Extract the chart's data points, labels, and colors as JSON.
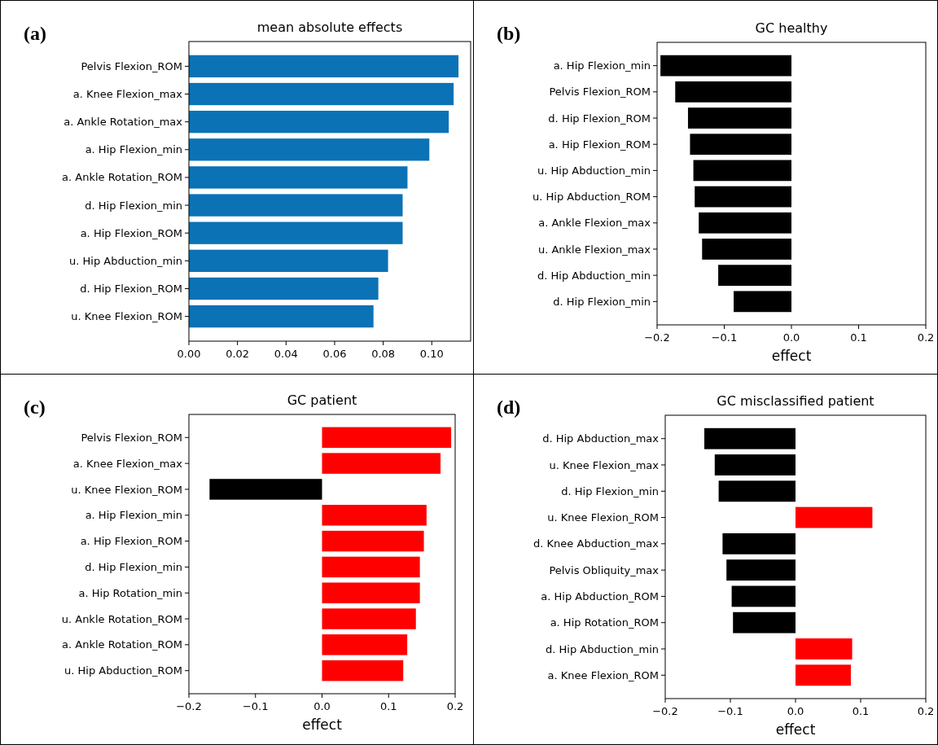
{
  "chart_data": [
    {
      "type": "bar",
      "orientation": "horizontal",
      "title": "mean absolute effects",
      "annotations": [
        "(a)"
      ],
      "categories": [
        "Pelvis Flexion_ROM",
        "a. Knee Flexion_max",
        "a. Ankle Rotation_max",
        "a. Hip Flexion_min",
        "a. Ankle Rotation_ROM",
        "d. Hip Flexion_min",
        "a. Hip Flexion_ROM",
        "u. Hip Abduction_min",
        "d. Hip Flexion_ROM",
        "u. Knee Flexion_ROM"
      ],
      "values": [
        0.111,
        0.109,
        0.107,
        0.099,
        0.09,
        0.088,
        0.088,
        0.082,
        0.078,
        0.076
      ],
      "color": "#0b72b5",
      "xlim": [
        0,
        0.116
      ],
      "xticks": [
        {
          "value": 0,
          "label": "0.00"
        },
        {
          "value": 0.02,
          "label": "0.02"
        },
        {
          "value": 0.04,
          "label": "0.04"
        },
        {
          "value": 0.06,
          "label": "0.06"
        },
        {
          "value": 0.08,
          "label": "0.08"
        },
        {
          "value": 0.1,
          "label": "0.10"
        }
      ]
    },
    {
      "type": "bar",
      "orientation": "horizontal",
      "title": "GC healthy",
      "xlabel": "effect",
      "annotations": [
        "(b)"
      ],
      "categories": [
        "a. Hip Flexion_min",
        "Pelvis Flexion_ROM",
        "d. Hip Flexion_ROM",
        "a. Hip Flexion_ROM",
        "u. Hip Abduction_min",
        "u. Hip Abduction_ROM",
        "a. Ankle Flexion_max",
        "u. Ankle Flexion_max",
        "d. Hip Abduction_min",
        "d. Hip Flexion_min"
      ],
      "values": [
        -0.195,
        -0.173,
        -0.154,
        -0.151,
        -0.146,
        -0.144,
        -0.138,
        -0.133,
        -0.109,
        -0.086
      ],
      "color": "#000000",
      "xlim": [
        -0.2,
        0.2
      ],
      "xticks": [
        {
          "value": -0.2,
          "label": "−0.2"
        },
        {
          "value": -0.1,
          "label": "−0.1"
        },
        {
          "value": 0,
          "label": "0.0"
        },
        {
          "value": 0.1,
          "label": "0.1"
        },
        {
          "value": 0.2,
          "label": "0.2"
        }
      ]
    },
    {
      "type": "bar",
      "orientation": "horizontal",
      "title": "GC patient",
      "xlabel": "effect",
      "annotations": [
        "(c)"
      ],
      "categories": [
        "Pelvis Flexion_ROM",
        "a. Knee Flexion_max",
        "u. Knee Flexion_ROM",
        "a. Hip Flexion_min",
        "a. Hip Flexion_ROM",
        "d. Hip Flexion_min",
        "a. Hip Rotation_min",
        "u. Ankle Rotation_ROM",
        "a. Ankle Rotation_ROM",
        "u. Hip Abduction_ROM"
      ],
      "values": [
        0.194,
        0.178,
        -0.169,
        0.157,
        0.153,
        0.147,
        0.147,
        0.141,
        0.128,
        0.122
      ],
      "colors": [
        "#ff0000",
        "#ff0000",
        "#000000",
        "#ff0000",
        "#ff0000",
        "#ff0000",
        "#ff0000",
        "#ff0000",
        "#ff0000",
        "#ff0000"
      ],
      "xlim": [
        -0.2,
        0.2
      ],
      "xticks": [
        {
          "value": -0.2,
          "label": "−0.2"
        },
        {
          "value": -0.1,
          "label": "−0.1"
        },
        {
          "value": 0,
          "label": "0.0"
        },
        {
          "value": 0.1,
          "label": "0.1"
        },
        {
          "value": 0.2,
          "label": "0.2"
        }
      ]
    },
    {
      "type": "bar",
      "orientation": "horizontal",
      "title": "GC misclassified patient",
      "xlabel": "effect",
      "annotations": [
        "(d)"
      ],
      "categories": [
        "d. Hip Abduction_max",
        "u. Knee Flexion_max",
        "d. Hip Flexion_min",
        "u. Knee Flexion_ROM",
        "d. Knee Abduction_max",
        "Pelvis Obliquity_max",
        "a. Hip Abduction_ROM",
        "a. Hip Rotation_ROM",
        "d. Hip Abduction_min",
        "a. Knee Flexion_ROM"
      ],
      "values": [
        -0.14,
        -0.124,
        -0.118,
        0.118,
        -0.112,
        -0.106,
        -0.098,
        -0.096,
        0.087,
        0.085
      ],
      "colors": [
        "#000000",
        "#000000",
        "#000000",
        "#ff0000",
        "#000000",
        "#000000",
        "#000000",
        "#000000",
        "#ff0000",
        "#ff0000"
      ],
      "xlim": [
        -0.2,
        0.2
      ],
      "xticks": [
        {
          "value": -0.2,
          "label": "−0.2"
        },
        {
          "value": -0.1,
          "label": "−0.1"
        },
        {
          "value": 0,
          "label": "0.0"
        },
        {
          "value": 0.1,
          "label": "0.1"
        },
        {
          "value": 0.2,
          "label": "0.2"
        }
      ]
    }
  ]
}
